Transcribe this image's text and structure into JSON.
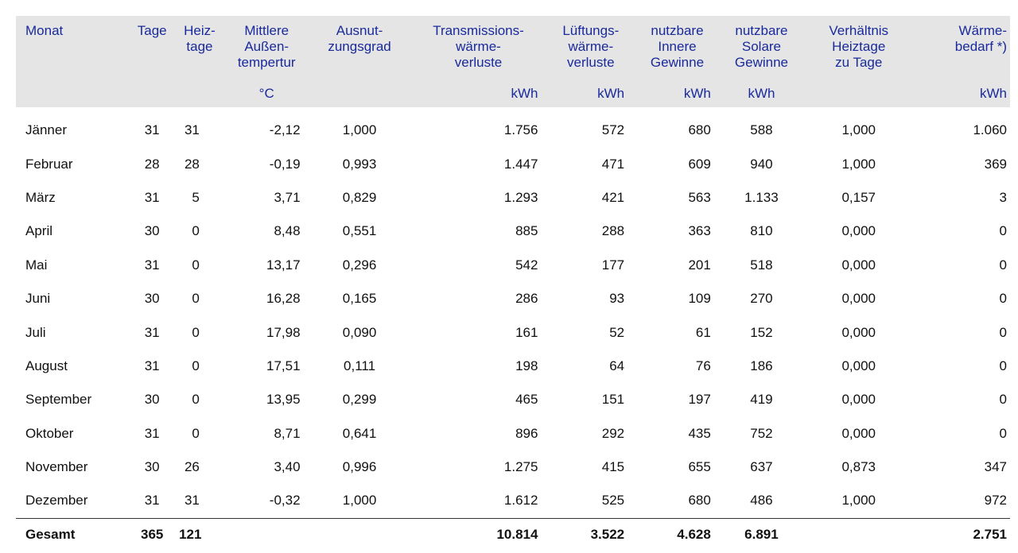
{
  "headers": [
    {
      "main": "Monat",
      "unit": ""
    },
    {
      "main": "Tage",
      "unit": ""
    },
    {
      "main": "Heiz-\ntage",
      "unit": ""
    },
    {
      "main": "Mittlere\nAußen-\ntempertur",
      "unit": "°C"
    },
    {
      "main": "Ausnut-\nzungsgrad",
      "unit": ""
    },
    {
      "main": "Transmissions-\nwärme-\nverluste",
      "unit": "kWh"
    },
    {
      "main": "Lüftungs-\nwärme-\nverluste",
      "unit": "kWh"
    },
    {
      "main": "nutzbare\nInnere\nGewinne",
      "unit": "kWh"
    },
    {
      "main": "nutzbare\nSolare\nGewinne",
      "unit": "kWh"
    },
    {
      "main": "Verhältnis\nHeiztage\nzu Tage",
      "unit": ""
    },
    {
      "main": "Wärme-\nbedarf *)",
      "unit": "kWh"
    }
  ],
  "rows": [
    [
      "Jänner",
      "31",
      "31",
      "-2,12",
      "1,000",
      "1.756",
      "572",
      "680",
      "588",
      "1,000",
      "1.060"
    ],
    [
      "Februar",
      "28",
      "28",
      "-0,19",
      "0,993",
      "1.447",
      "471",
      "609",
      "940",
      "1,000",
      "369"
    ],
    [
      "März",
      "31",
      "5",
      "3,71",
      "0,829",
      "1.293",
      "421",
      "563",
      "1.133",
      "0,157",
      "3"
    ],
    [
      "April",
      "30",
      "0",
      "8,48",
      "0,551",
      "885",
      "288",
      "363",
      "810",
      "0,000",
      "0"
    ],
    [
      "Mai",
      "31",
      "0",
      "13,17",
      "0,296",
      "542",
      "177",
      "201",
      "518",
      "0,000",
      "0"
    ],
    [
      "Juni",
      "30",
      "0",
      "16,28",
      "0,165",
      "286",
      "93",
      "109",
      "270",
      "0,000",
      "0"
    ],
    [
      "Juli",
      "31",
      "0",
      "17,98",
      "0,090",
      "161",
      "52",
      "61",
      "152",
      "0,000",
      "0"
    ],
    [
      "August",
      "31",
      "0",
      "17,51",
      "0,111",
      "198",
      "64",
      "76",
      "186",
      "0,000",
      "0"
    ],
    [
      "September",
      "30",
      "0",
      "13,95",
      "0,299",
      "465",
      "151",
      "197",
      "419",
      "0,000",
      "0"
    ],
    [
      "Oktober",
      "31",
      "0",
      "8,71",
      "0,641",
      "896",
      "292",
      "435",
      "752",
      "0,000",
      "0"
    ],
    [
      "November",
      "30",
      "26",
      "3,40",
      "0,996",
      "1.275",
      "415",
      "655",
      "637",
      "0,873",
      "347"
    ],
    [
      "Dezember",
      "31",
      "31",
      "-0,32",
      "1,000",
      "1.612",
      "525",
      "680",
      "486",
      "1,000",
      "972"
    ]
  ],
  "total": [
    "Gesamt",
    "365",
    "121",
    "",
    "",
    "10.814",
    "3.522",
    "4.628",
    "6.891",
    "",
    "2.751"
  ]
}
